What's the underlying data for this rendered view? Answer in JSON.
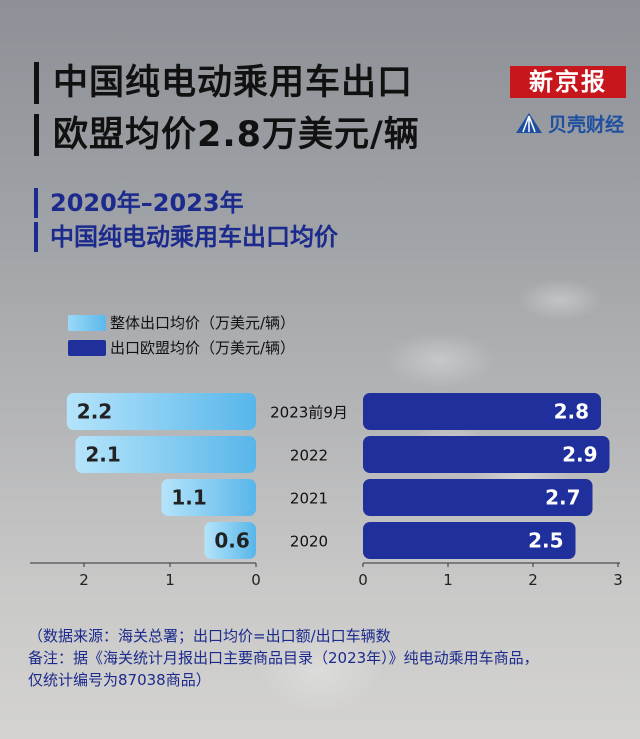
{
  "header": {
    "title_line1": "中国纯电动乘用车出口",
    "title_line2": "欧盟均价2.8万美元/辆"
  },
  "brand": {
    "logo_text": "新京报",
    "sub_logo_text": "贝壳财经"
  },
  "colors": {
    "overall": "#6dc3ef",
    "eu": "#1f2f9c",
    "accent_red": "#c8161d"
  },
  "chart_data": {
    "type": "bar",
    "title": "2020年–2023年",
    "subtitle": "中国纯电动乘用车出口均价",
    "categories": [
      "2023前9月",
      "2022",
      "2021",
      "2020"
    ],
    "series": [
      {
        "name": "整体出口均价（万美元/辆）",
        "values": [
          2.2,
          2.1,
          1.1,
          0.6
        ]
      },
      {
        "name": "出口欧盟均价（万美元/辆）",
        "values": [
          2.8,
          2.9,
          2.7,
          2.5
        ]
      }
    ],
    "left_axis": {
      "ticks": [
        "2",
        "1",
        "0"
      ],
      "range": [
        0,
        2.35
      ]
    },
    "right_axis": {
      "ticks": [
        "0",
        "1",
        "2",
        "3"
      ],
      "range": [
        0,
        3
      ]
    },
    "legend_position": "top-left",
    "grid": false
  },
  "footer": {
    "source": "（数据来源：海关总署；出口均价=出口额/出口车辆数",
    "remark_line1": "备注：据《海关统计月报出口主要商品目录（2023年）》纯电动乘用车商品，",
    "remark_line2": "仅统计编号为87038商品）"
  }
}
